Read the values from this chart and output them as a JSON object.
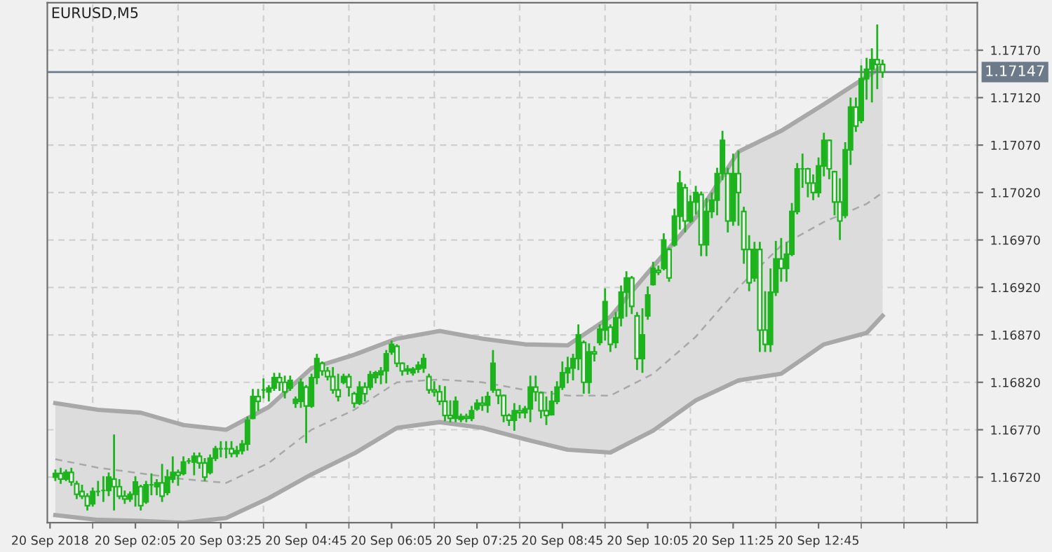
{
  "chart_data": {
    "type": "candlestick",
    "title": "EURUSD,M5",
    "color": "#1db31d",
    "categories": [
      "20 Sep 2018",
      null,
      null,
      null,
      null,
      null,
      null,
      null,
      null,
      null,
      null,
      null,
      null,
      null,
      null,
      null,
      "20 Sep 02:05",
      null,
      null,
      null,
      null,
      null,
      null,
      null,
      null,
      null,
      null,
      null,
      null,
      null,
      null,
      null,
      "20 Sep 03:25",
      null,
      null,
      null,
      null,
      null,
      null,
      null,
      null,
      null,
      null,
      null,
      null,
      null,
      null,
      null,
      "20 Sep 04:45",
      null,
      null,
      null,
      null,
      null,
      null,
      null,
      null,
      null,
      null,
      null,
      null,
      null,
      null,
      null,
      "20 Sep 06:05",
      null,
      null,
      null,
      null,
      null,
      null,
      null,
      null,
      null,
      null,
      null,
      null,
      null,
      null,
      null,
      "20 Sep 07:25",
      null,
      null,
      null,
      null,
      null,
      null,
      null,
      null,
      null,
      null,
      null,
      null,
      null,
      null,
      null,
      "20 Sep 08:45",
      null,
      null,
      null,
      null,
      null,
      null,
      null,
      null,
      null,
      null,
      null,
      null,
      null,
      null,
      null,
      "20 Sep 10:05",
      null,
      null,
      null,
      null,
      null,
      null,
      null,
      null,
      null,
      null,
      null,
      null,
      null,
      null,
      null,
      "20 Sep 11:25",
      null,
      null,
      null,
      null,
      null,
      null,
      null,
      null,
      null,
      null,
      null,
      null,
      null,
      null,
      null,
      "20 Sep 12:45",
      null,
      null,
      null,
      null,
      null,
      null,
      null,
      null,
      null,
      null,
      null,
      null,
      null,
      null,
      null,
      null,
      null,
      null,
      null,
      null,
      null,
      null,
      null,
      null,
      null,
      null,
      null,
      null,
      null
    ],
    "ohlc": [
      null,
      [
        1.1672,
        1.16727,
        1.16717,
        1.16724
      ],
      [
        1.16724,
        1.16729,
        1.16714,
        1.16718
      ],
      [
        1.16718,
        1.16727,
        1.16717,
        1.16725
      ],
      [
        1.16725,
        1.16729,
        1.16712,
        1.16715
      ],
      [
        1.16713,
        1.16715,
        1.16698,
        1.16702
      ],
      [
        1.16705,
        1.16711,
        1.16698,
        1.167
      ],
      [
        1.167,
        1.16702,
        1.16686,
        1.1669
      ],
      [
        1.16692,
        1.16708,
        1.1669,
        1.16705
      ],
      [
        1.16705,
        1.16715,
        1.16701,
        1.16705
      ],
      [
        1.16706,
        1.1672,
        1.16695,
        1.16706
      ],
      [
        1.16706,
        1.16724,
        1.16701,
        1.1672
      ],
      [
        1.16718,
        1.16764,
        1.16686,
        1.1671
      ],
      [
        1.1671,
        1.16717,
        1.16698,
        1.167
      ],
      [
        1.167,
        1.16705,
        1.16693,
        1.16697
      ],
      [
        1.16697,
        1.16704,
        1.16695,
        1.16702
      ],
      [
        1.16702,
        1.1672,
        1.1669,
        1.16715
      ],
      [
        1.1671,
        1.16711,
        1.16686,
        1.1669
      ],
      [
        1.16694,
        1.16715,
        1.16693,
        1.16712
      ],
      [
        1.16712,
        1.16723,
        1.16702,
        1.16712
      ],
      [
        1.1671,
        1.16717,
        1.16702,
        1.16714
      ],
      [
        1.16714,
        1.16733,
        1.16695,
        1.167
      ],
      [
        1.16704,
        1.16727,
        1.16702,
        1.1672
      ],
      [
        1.16718,
        1.16741,
        1.16715,
        1.16725
      ],
      [
        1.16725,
        1.16727,
        1.16712,
        1.16722
      ],
      [
        1.16724,
        1.16741,
        1.16723,
        1.16736
      ],
      [
        1.16737,
        1.16739,
        1.16735,
        1.16737
      ],
      [
        1.16736,
        1.16745,
        1.16723,
        1.16742
      ],
      [
        1.16742,
        1.16745,
        1.1673,
        1.16735
      ],
      [
        1.16735,
        1.16739,
        1.16717,
        1.1672
      ],
      [
        1.16725,
        1.16743,
        1.16724,
        1.1674
      ],
      [
        1.1674,
        1.16752,
        1.16738,
        1.1675
      ],
      [
        1.1675,
        1.16757,
        1.16742,
        1.1675
      ],
      [
        1.1675,
        1.16757,
        1.16741,
        1.1675
      ],
      [
        1.1675,
        1.16757,
        1.16742,
        1.16745
      ],
      [
        1.16745,
        1.16752,
        1.16742,
        1.16748
      ],
      [
        1.16748,
        1.16758,
        1.16745,
        1.16755
      ],
      [
        1.16755,
        1.16783,
        1.16749,
        1.1678
      ],
      [
        1.16782,
        1.16812,
        1.16782,
        1.16805
      ],
      [
        1.16805,
        1.16812,
        1.16791,
        1.168
      ],
      [
        1.16812,
        1.16823,
        1.16804,
        1.16812
      ],
      [
        1.1681,
        1.16816,
        1.16801,
        1.16814
      ],
      [
        1.16814,
        1.16829,
        1.16812,
        1.16825
      ],
      [
        1.16825,
        1.16829,
        1.16812,
        1.1682
      ],
      [
        1.1682,
        1.16826,
        1.16804,
        1.1681
      ],
      [
        1.16814,
        1.16826,
        1.16812,
        1.16822
      ],
      [
        1.16798,
        1.16804,
        1.16794,
        1.16802
      ],
      [
        1.168,
        1.16823,
        1.16794,
        1.1682
      ],
      [
        1.16815,
        1.16816,
        1.16757,
        1.16795
      ],
      [
        1.16795,
        1.16828,
        1.16794,
        1.16825
      ],
      [
        1.16825,
        1.16849,
        1.16819,
        1.16845
      ],
      [
        1.1684,
        1.16841,
        1.16828,
        1.16832
      ],
      [
        1.16832,
        1.16835,
        1.16823,
        1.16826
      ],
      [
        1.16826,
        1.16835,
        1.16809,
        1.16812
      ],
      [
        1.16812,
        1.16828,
        1.16801,
        1.16805
      ],
      [
        1.1682,
        1.16828,
        1.16819,
        1.16826
      ],
      [
        1.16826,
        1.16828,
        1.16806,
        1.16815
      ],
      [
        1.16808,
        1.16809,
        1.16794,
        1.16798
      ],
      [
        1.16798,
        1.1682,
        1.16797,
        1.16815
      ],
      [
        1.16815,
        1.16819,
        1.16801,
        1.16808
      ],
      [
        1.16815,
        1.16831,
        1.16813,
        1.16828
      ],
      [
        1.16825,
        1.16831,
        1.1682,
        1.1683
      ],
      [
        1.16828,
        1.16835,
        1.16819,
        1.16832
      ],
      [
        1.16832,
        1.16853,
        1.1682,
        1.1685
      ],
      [
        1.16852,
        1.16863,
        1.1685,
        1.1686
      ],
      [
        1.16858,
        1.16859,
        1.16837,
        1.1684
      ],
      [
        1.1684,
        1.1684,
        1.16828,
        1.16832
      ],
      [
        1.16832,
        1.16837,
        1.16829,
        1.16834
      ],
      [
        1.1683,
        1.16835,
        1.16828,
        1.16834
      ],
      [
        1.16834,
        1.16841,
        1.16831,
        1.16838
      ],
      [
        1.16835,
        1.16849,
        1.16831,
        1.16845
      ],
      [
        1.16826,
        1.16828,
        1.16809,
        1.16812
      ],
      [
        1.16812,
        1.1682,
        1.16806,
        1.1681
      ],
      [
        1.1681,
        1.16816,
        1.16797,
        1.168
      ],
      [
        1.168,
        1.16815,
        1.1678,
        1.16785
      ],
      [
        1.16785,
        1.168,
        1.16779,
        1.16782
      ],
      [
        1.16782,
        1.16804,
        1.16779,
        1.168
      ],
      [
        1.16781,
        1.16786,
        1.16779,
        1.16784
      ],
      [
        1.16784,
        1.16786,
        1.16779,
        1.16782
      ],
      [
        1.16782,
        1.16794,
        1.1678,
        1.1679
      ],
      [
        1.16792,
        1.16801,
        1.16791,
        1.16798
      ],
      [
        1.16798,
        1.16804,
        1.16791,
        1.16796
      ],
      [
        1.16796,
        1.16809,
        1.16789,
        1.16805
      ],
      [
        1.16812,
        1.16853,
        1.1681,
        1.1684
      ],
      [
        1.16812,
        1.16812,
        1.16798,
        1.16806
      ],
      [
        1.16806,
        1.16806,
        1.16779,
        1.16785
      ],
      [
        1.16785,
        1.16786,
        1.16775,
        1.1678
      ],
      [
        1.1678,
        1.16797,
        1.1677,
        1.1679
      ],
      [
        1.1679,
        1.16795,
        1.16783,
        1.16788
      ],
      [
        1.16788,
        1.16794,
        1.16783,
        1.16792
      ],
      [
        1.16792,
        1.16826,
        1.16779,
        1.16815
      ],
      [
        1.16815,
        1.16826,
        1.16801,
        1.1681
      ],
      [
        1.16809,
        1.16809,
        1.16783,
        1.1679
      ],
      [
        1.1679,
        1.16804,
        1.16776,
        1.16785
      ],
      [
        1.16786,
        1.1681,
        1.16786,
        1.168
      ],
      [
        1.168,
        1.1682,
        1.16798,
        1.16815
      ],
      [
        1.16815,
        1.16841,
        1.16813,
        1.1683
      ],
      [
        1.1683,
        1.16846,
        1.1682,
        1.16835
      ],
      [
        1.16835,
        1.16849,
        1.16823,
        1.16845
      ],
      [
        1.16845,
        1.1688,
        1.16834,
        1.1687
      ],
      [
        1.16862,
        1.16863,
        1.16809,
        1.1682
      ],
      [
        1.1682,
        1.1686,
        1.16809,
        1.16852
      ],
      [
        1.16852,
        1.16857,
        1.16843,
        1.1685
      ],
      [
        1.16862,
        1.1688,
        1.1686,
        1.16876
      ],
      [
        1.16875,
        1.16918,
        1.16865,
        1.16905
      ],
      [
        1.16878,
        1.1688,
        1.16853,
        1.1686
      ],
      [
        1.16862,
        1.16893,
        1.16857,
        1.16888
      ],
      [
        1.16888,
        1.16921,
        1.1688,
        1.16915
      ],
      [
        1.16915,
        1.16936,
        1.1689,
        1.1693
      ],
      [
        1.1693,
        1.16931,
        1.16893,
        1.169
      ],
      [
        1.1689,
        1.16893,
        1.16834,
        1.16845
      ],
      [
        1.16845,
        1.16897,
        1.16831,
        1.1687
      ],
      [
        1.1689,
        1.1692,
        1.16887,
        1.16912
      ],
      [
        1.16923,
        1.16946,
        1.16923,
        1.1694
      ],
      [
        1.16938,
        1.16942,
        1.16934,
        1.16936
      ],
      [
        1.1694,
        1.16976,
        1.16939,
        1.1697
      ],
      [
        1.1696,
        1.16961,
        1.16927,
        1.1693
      ],
      [
        1.16965,
        1.17002,
        1.16964,
        1.16995
      ],
      [
        1.16995,
        1.17042,
        1.16982,
        1.1703
      ],
      [
        1.17025,
        1.17028,
        1.16979,
        1.1699
      ],
      [
        1.1699,
        1.17016,
        1.16989,
        1.1701
      ],
      [
        1.1701,
        1.17026,
        1.16998,
        1.1702
      ],
      [
        1.17018,
        1.1702,
        1.16954,
        1.16965
      ],
      [
        1.16965,
        1.17013,
        1.16954,
        1.17
      ],
      [
        1.17,
        1.17019,
        1.16994,
        1.17012
      ],
      [
        1.17012,
        1.17045,
        1.16997,
        1.1704
      ],
      [
        1.1704,
        1.17084,
        1.17034,
        1.17075
      ],
      [
        1.1704,
        1.17045,
        1.16979,
        1.1699
      ],
      [
        1.1699,
        1.1706,
        1.16986,
        1.1704
      ],
      [
        1.1704,
        1.17063,
        1.16986,
        1.1702
      ],
      [
        1.17,
        1.17004,
        1.16946,
        1.1696
      ],
      [
        1.1696,
        1.16974,
        1.16917,
        1.16925
      ],
      [
        1.1693,
        1.16967,
        1.16927,
        1.1696
      ],
      [
        1.1696,
        1.16967,
        1.16853,
        1.16875
      ],
      [
        1.16875,
        1.16915,
        1.16853,
        1.1686
      ],
      [
        1.1686,
        1.16939,
        1.16853,
        1.16915
      ],
      [
        1.16915,
        1.16968,
        1.16912,
        1.1695
      ],
      [
        1.1695,
        1.16971,
        1.16927,
        1.1694
      ],
      [
        1.1694,
        1.16967,
        1.16927,
        1.16955
      ],
      [
        1.16955,
        1.17008,
        1.16954,
        1.17
      ],
      [
        1.17,
        1.1705,
        1.16998,
        1.17045
      ],
      [
        1.17045,
        1.1706,
        1.17026,
        1.17045
      ],
      [
        1.17045,
        1.17045,
        1.17016,
        1.1703
      ],
      [
        1.1703,
        1.17038,
        1.17013,
        1.1702
      ],
      [
        1.1702,
        1.17056,
        1.17016,
        1.17048
      ],
      [
        1.17048,
        1.17082,
        1.17038,
        1.17075
      ],
      [
        1.17075,
        1.17075,
        1.17035,
        1.17045
      ],
      [
        1.17042,
        1.17042,
        1.16997,
        1.1701
      ],
      [
        1.1701,
        1.17034,
        1.16971,
        1.1699
      ],
      [
        1.16996,
        1.17072,
        1.16994,
        1.17065
      ],
      [
        1.17065,
        1.17119,
        1.1705,
        1.1711
      ],
      [
        1.1711,
        1.17119,
        1.17085,
        1.1709
      ],
      [
        1.17096,
        1.17153,
        1.17094,
        1.1714
      ],
      [
        1.1714,
        1.17161,
        1.17119,
        1.1715
      ],
      [
        1.1715,
        1.17171,
        1.17116,
        1.1716
      ],
      [
        1.1716,
        1.17196,
        1.1713,
        1.17155
      ],
      [
        1.17155,
        1.17159,
        1.17142,
        1.17147
      ],
      null,
      null,
      null,
      null,
      null,
      null,
      null,
      null,
      null,
      null,
      null,
      null,
      null,
      null,
      null,
      null,
      null
    ],
    "series": [
      {
        "type": "line",
        "color": "#a8a8a8",
        "line_style": "solid",
        "values": [
          null,
          1.16798,
          null,
          null,
          null,
          null,
          null,
          null,
          null,
          1.16791,
          null,
          null,
          null,
          null,
          null,
          null,
          null,
          1.16788,
          null,
          null,
          null,
          null,
          null,
          null,
          null,
          1.16775,
          null,
          null,
          null,
          null,
          null,
          null,
          null,
          1.1677,
          null,
          null,
          null,
          null,
          null,
          null,
          null,
          1.16794,
          null,
          null,
          null,
          null,
          null,
          null,
          null,
          1.16835,
          null,
          null,
          null,
          null,
          null,
          null,
          null,
          1.16849,
          null,
          null,
          null,
          null,
          null,
          null,
          null,
          1.16866,
          null,
          null,
          null,
          null,
          null,
          null,
          null,
          1.16874,
          null,
          null,
          null,
          null,
          null,
          null,
          null,
          1.16866,
          null,
          null,
          null,
          null,
          null,
          null,
          null,
          1.1686,
          null,
          null,
          null,
          null,
          null,
          null,
          null,
          1.16859,
          null,
          null,
          null,
          null,
          null,
          null,
          null,
          1.16889,
          null,
          null,
          null,
          null,
          null,
          null,
          null,
          1.16942,
          null,
          null,
          null,
          null,
          null,
          null,
          null,
          1.16994,
          null,
          null,
          null,
          null,
          null,
          null,
          null,
          1.17063,
          null,
          null,
          null,
          null,
          null,
          null,
          null,
          1.17085,
          null,
          null,
          null,
          null,
          null,
          null,
          null,
          1.17113,
          null,
          null,
          null,
          null,
          null,
          null,
          null,
          1.17142,
          null,
          null,
          1.17153,
          null,
          null,
          null,
          null,
          null,
          null,
          null,
          null,
          null,
          null,
          null,
          null,
          null,
          null,
          null,
          null,
          null
        ]
      },
      {
        "type": "line",
        "color": "#a8a8a8",
        "line_style": "solid",
        "values": [
          null,
          1.1668,
          null,
          null,
          null,
          null,
          null,
          null,
          null,
          1.16675,
          null,
          null,
          null,
          null,
          null,
          null,
          null,
          1.16674,
          null,
          null,
          null,
          null,
          null,
          null,
          null,
          1.16672,
          null,
          null,
          null,
          null,
          null,
          null,
          null,
          1.16677,
          null,
          null,
          null,
          null,
          null,
          null,
          null,
          1.16698,
          null,
          null,
          null,
          null,
          null,
          null,
          null,
          1.16723,
          null,
          null,
          null,
          null,
          null,
          null,
          null,
          1.16745,
          null,
          null,
          null,
          null,
          null,
          null,
          null,
          1.16772,
          null,
          null,
          null,
          null,
          null,
          null,
          null,
          1.16778,
          null,
          null,
          null,
          null,
          null,
          null,
          null,
          1.16772,
          null,
          null,
          null,
          null,
          null,
          null,
          null,
          1.1676,
          null,
          null,
          null,
          null,
          null,
          null,
          null,
          1.16749,
          null,
          null,
          null,
          null,
          null,
          null,
          null,
          1.16746,
          null,
          null,
          null,
          null,
          null,
          null,
          null,
          1.16769,
          null,
          null,
          null,
          null,
          null,
          null,
          null,
          1.16801,
          null,
          null,
          null,
          null,
          null,
          null,
          null,
          1.16822,
          null,
          null,
          null,
          null,
          null,
          null,
          null,
          1.16829,
          null,
          null,
          null,
          null,
          null,
          null,
          null,
          1.1686,
          null,
          null,
          null,
          null,
          null,
          null,
          null,
          1.16872,
          null,
          null,
          1.1689,
          null,
          null,
          null,
          null,
          null,
          null,
          null,
          null,
          null,
          null,
          null,
          null,
          null,
          null,
          null,
          null,
          null
        ]
      },
      {
        "type": "line",
        "color": "#a8a8a8",
        "line_style": "dashed",
        "values": [
          null,
          1.16739,
          null,
          null,
          null,
          null,
          null,
          null,
          null,
          1.1673,
          null,
          null,
          null,
          null,
          null,
          null,
          null,
          1.16724,
          null,
          null,
          null,
          null,
          null,
          null,
          null,
          1.16718,
          null,
          null,
          null,
          null,
          null,
          null,
          null,
          1.16714,
          null,
          null,
          null,
          null,
          null,
          null,
          null,
          1.16735,
          null,
          null,
          null,
          null,
          null,
          null,
          null,
          1.1677,
          null,
          null,
          null,
          null,
          null,
          null,
          null,
          1.16791,
          null,
          null,
          null,
          null,
          null,
          null,
          null,
          1.1682,
          null,
          null,
          null,
          null,
          null,
          null,
          null,
          1.16823,
          null,
          null,
          null,
          null,
          null,
          null,
          null,
          1.1682,
          null,
          null,
          null,
          null,
          null,
          null,
          null,
          1.16812,
          null,
          null,
          null,
          null,
          null,
          null,
          null,
          1.16806,
          null,
          null,
          null,
          null,
          null,
          null,
          null,
          1.16806,
          null,
          null,
          null,
          null,
          null,
          null,
          null,
          1.16829,
          null,
          null,
          null,
          null,
          null,
          null,
          null,
          1.16868,
          null,
          null,
          null,
          null,
          null,
          null,
          null,
          1.1692,
          null,
          null,
          null,
          null,
          null,
          null,
          null,
          1.16964,
          null,
          null,
          null,
          null,
          null,
          null,
          null,
          1.16989,
          null,
          null,
          null,
          null,
          null,
          null,
          null,
          1.17008,
          null,
          null,
          1.1702,
          null,
          null,
          null,
          null,
          null,
          null,
          null,
          null,
          null,
          null,
          null,
          null,
          null,
          null,
          null,
          null,
          null
        ],
        "lower": [
          null,
          1.1668,
          null,
          null,
          null,
          null,
          null,
          null,
          null,
          1.16675,
          null,
          null,
          null,
          null,
          null,
          null,
          null,
          1.16674,
          null,
          null,
          null,
          null,
          null,
          null,
          null,
          1.16672,
          null,
          null,
          null,
          null,
          null,
          null,
          null,
          1.16677,
          null,
          null,
          null,
          null,
          null,
          null,
          null,
          1.16698,
          null,
          null,
          null,
          null,
          null,
          null,
          null,
          1.16723,
          null,
          null,
          null,
          null,
          null,
          null,
          null,
          1.16745,
          null,
          null,
          null,
          null,
          null,
          null,
          null,
          1.16772,
          null,
          null,
          null,
          null,
          null,
          null,
          null,
          1.16778,
          null,
          null,
          null,
          null,
          null,
          null,
          null,
          1.16772,
          null,
          null,
          null,
          null,
          null,
          null,
          null,
          1.1676,
          null,
          null,
          null,
          null,
          null,
          null,
          null,
          1.16749,
          null,
          null,
          null,
          null,
          null,
          null,
          null,
          1.16746,
          null,
          null,
          null,
          null,
          null,
          null,
          null,
          1.16769,
          null,
          null,
          null,
          null,
          null,
          null,
          null,
          1.16801,
          null,
          null,
          null,
          null,
          null,
          null,
          null,
          1.16822,
          null,
          null,
          null,
          null,
          null,
          null,
          null,
          1.16829,
          null,
          null,
          null,
          null,
          null,
          null,
          null,
          1.1686,
          null,
          null,
          null,
          null,
          null,
          null,
          null,
          1.16872,
          null,
          null,
          1.1689,
          null,
          null,
          null,
          null,
          null,
          null,
          null,
          null,
          null,
          null,
          null,
          null,
          null,
          null,
          null,
          null,
          null
        ],
        "upper": [
          null,
          1.16798,
          null,
          null,
          null,
          null,
          null,
          null,
          null,
          1.16791,
          null,
          null,
          null,
          null,
          null,
          null,
          null,
          1.16788,
          null,
          null,
          null,
          null,
          null,
          null,
          null,
          1.16775,
          null,
          null,
          null,
          null,
          null,
          null,
          null,
          1.1677,
          null,
          null,
          null,
          null,
          null,
          null,
          null,
          1.16794,
          null,
          null,
          null,
          null,
          null,
          null,
          null,
          1.16835,
          null,
          null,
          null,
          null,
          null,
          null,
          null,
          1.16849,
          null,
          null,
          null,
          null,
          null,
          null,
          null,
          1.16866,
          null,
          null,
          null,
          null,
          null,
          null,
          null,
          1.16874,
          null,
          null,
          null,
          null,
          null,
          null,
          null,
          1.16866,
          null,
          null,
          null,
          null,
          null,
          null,
          null,
          1.1686,
          null,
          null,
          null,
          null,
          null,
          null,
          null,
          1.16859,
          null,
          null,
          null,
          null,
          null,
          null,
          null,
          1.16889,
          null,
          null,
          null,
          null,
          null,
          null,
          null,
          1.16942,
          null,
          null,
          null,
          null,
          null,
          null,
          null,
          1.16994,
          null,
          null,
          null,
          null,
          null,
          null,
          null,
          1.17063,
          null,
          null,
          null,
          null,
          null,
          null,
          null,
          1.17085,
          null,
          null,
          null,
          null,
          null,
          null,
          null,
          1.17113,
          null,
          null,
          null,
          null,
          null,
          null,
          null,
          1.17142,
          null,
          null,
          1.17153,
          null,
          null,
          null,
          null,
          null,
          null,
          null,
          null,
          null,
          null,
          null,
          null,
          null,
          null,
          null,
          null,
          null
        ]
      }
    ],
    "ref_lines": [
      {
        "axis": "y",
        "value": 1.17147,
        "label": "1.17147",
        "color": "#6c7a8a"
      }
    ],
    "ylim": [
      1.16672,
      1.1722
    ],
    "yticks": [
      {
        "value": 1.1672,
        "label": "1.16720"
      },
      {
        "value": 1.1677,
        "label": "1.16770"
      },
      {
        "value": 1.1682,
        "label": "1.16820"
      },
      {
        "value": 1.1687,
        "label": "1.16870"
      },
      {
        "value": 1.1692,
        "label": "1.16920"
      },
      {
        "value": 1.1697,
        "label": "1.16970"
      },
      {
        "value": 1.1702,
        "label": "1.17020"
      },
      {
        "value": 1.1707,
        "label": "1.17070"
      },
      {
        "value": 1.1712,
        "label": "1.17120"
      },
      {
        "value": 1.1717,
        "label": "1.17170"
      }
    ],
    "grid": true,
    "legend": false
  }
}
